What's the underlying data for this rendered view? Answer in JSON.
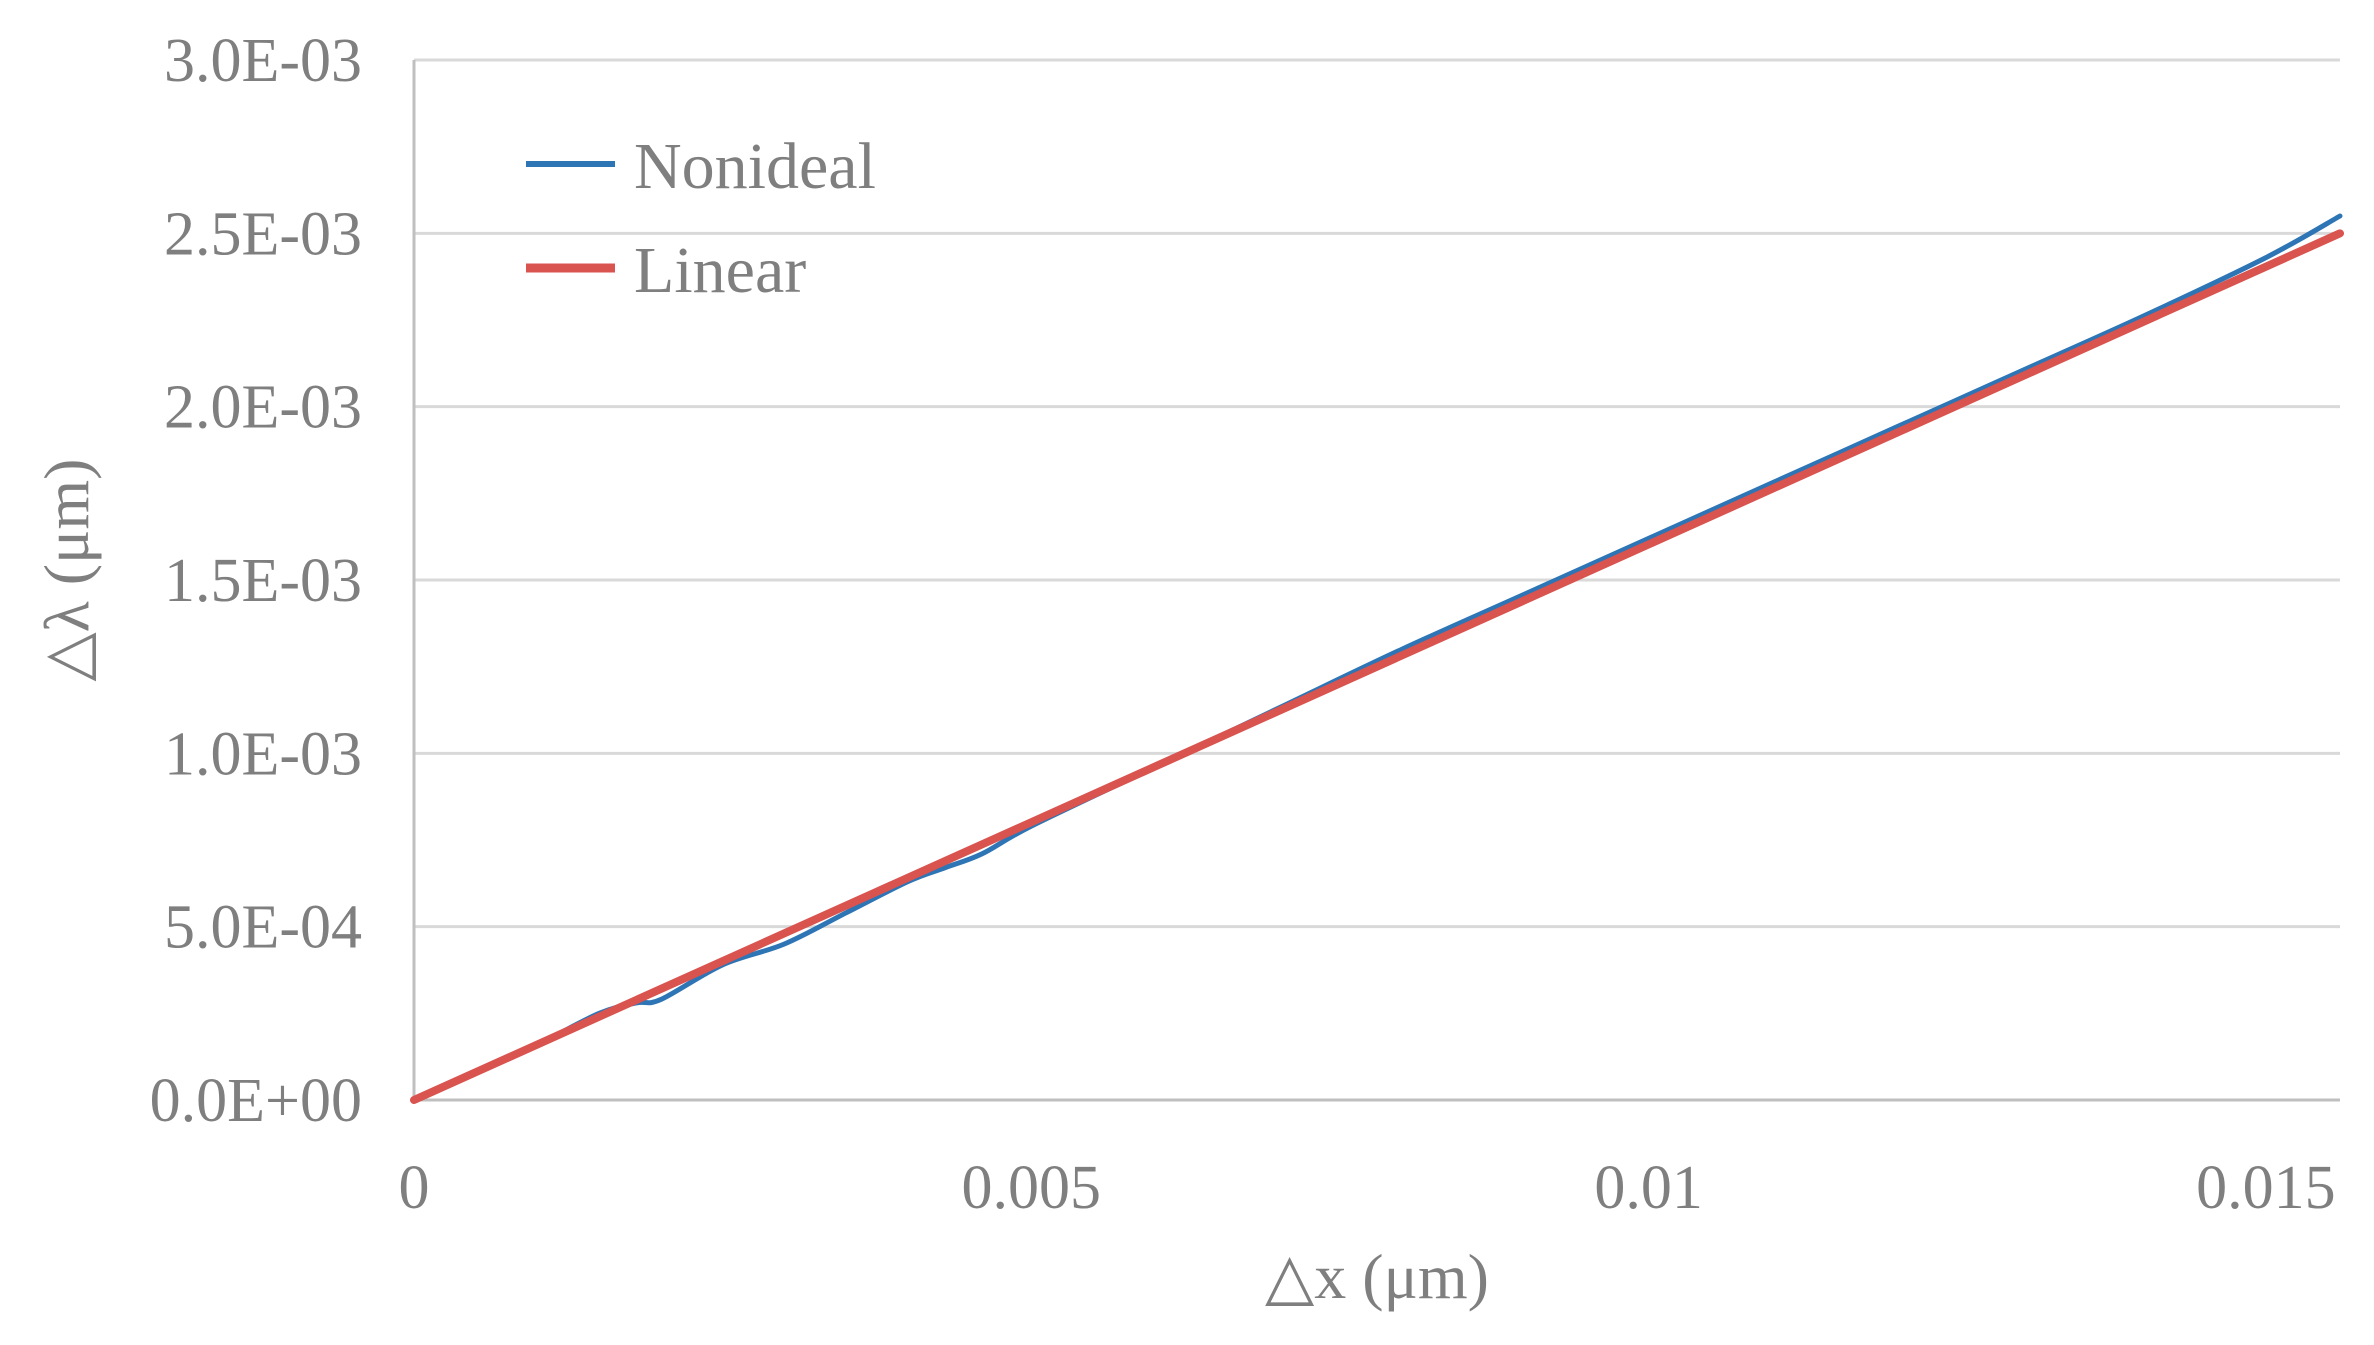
{
  "chart_data": {
    "type": "line",
    "title": "",
    "xlabel": "△x (μm)",
    "ylabel": "△λ (μm)",
    "xlim": [
      0,
      0.0156
    ],
    "ylim": [
      0,
      0.003
    ],
    "x_ticks": [
      0,
      0.005,
      0.01,
      0.015
    ],
    "x_tick_labels": [
      "0",
      "0.005",
      "0.01",
      "0.015"
    ],
    "y_ticks": [
      0,
      0.0005,
      0.001,
      0.0015,
      0.002,
      0.0025,
      0.003
    ],
    "y_tick_labels": [
      "0.0E+00",
      "5.0E-04",
      "1.0E-03",
      "1.5E-03",
      "2.0E-03",
      "2.5E-03",
      "3.0E-03"
    ],
    "grid": "horizontal",
    "legend_position": "top-left",
    "series": [
      {
        "name": "Nonideal",
        "color": "#2e75b6",
        "x": [
          0,
          0.0005,
          0.001,
          0.0015,
          0.0018,
          0.002,
          0.0025,
          0.003,
          0.0035,
          0.004,
          0.0043,
          0.0046,
          0.005,
          0.006,
          0.007,
          0.008,
          0.009,
          0.01,
          0.011,
          0.012,
          0.013,
          0.014,
          0.015,
          0.0156
        ],
        "y": [
          0,
          8e-05,
          0.00016,
          0.00025,
          0.00028,
          0.00029,
          0.00039,
          0.00045,
          0.00054,
          0.00063,
          0.00067,
          0.00071,
          0.00079,
          0.00096,
          0.00113,
          0.0013,
          0.00146,
          0.00162,
          0.00178,
          0.00194,
          0.0021,
          0.00226,
          0.00243,
          0.00255
        ]
      },
      {
        "name": "Linear",
        "color": "#d9534f",
        "x": [
          0,
          0.0156
        ],
        "y": [
          0,
          0.0025
        ]
      }
    ]
  }
}
